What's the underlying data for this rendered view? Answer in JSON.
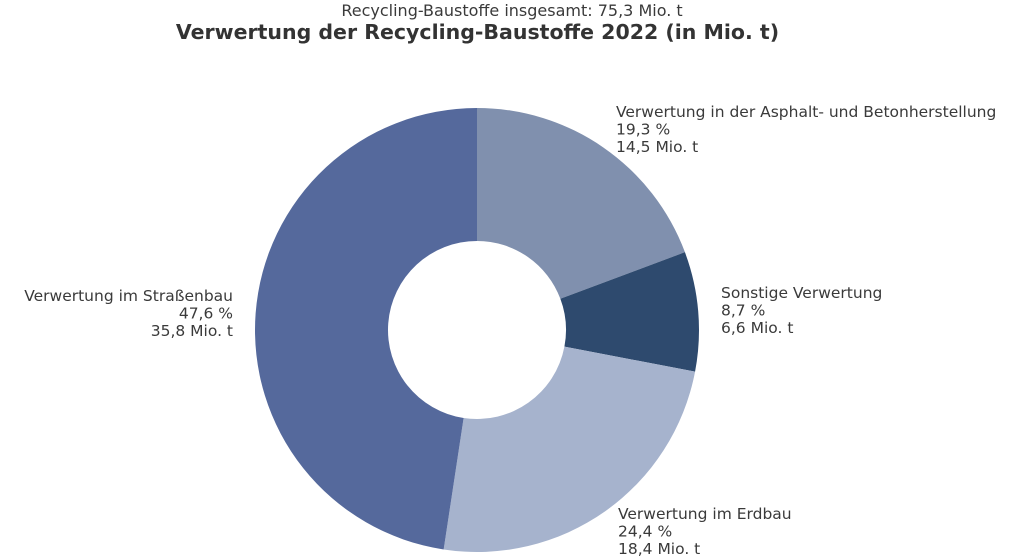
{
  "chart_data": {
    "type": "pie",
    "subtitle": "Recycling-Baustoffe insgesamt: 75,3 Mio. t",
    "title": "Verwertung der Recycling-Baustoffe 2022 (in Mio. t)",
    "donut": true,
    "start_angle_deg": 0,
    "direction": "clockwise",
    "slices": [
      {
        "label": "Verwertung in der Asphalt- und Betonherstellung",
        "percent": 19.3,
        "percent_text": "19,3 %",
        "value": 14.5,
        "value_text": "14,5 Mio. t",
        "color": "#8090ae"
      },
      {
        "label": "Sonstige Verwertung",
        "percent": 8.7,
        "percent_text": "8,7 %",
        "value": 6.6,
        "value_text": "6,6 Mio. t",
        "color": "#2e4a6e"
      },
      {
        "label": "Verwertung im Erdbau",
        "percent": 24.4,
        "percent_text": "24,4 %",
        "value": 18.4,
        "value_text": "18,4 Mio. t",
        "color": "#a6b3cd"
      },
      {
        "label": "Verwertung im Straßenbau",
        "percent": 47.6,
        "percent_text": "47,6 %",
        "value": 35.8,
        "value_text": "35,8 Mio. t",
        "color": "#55699c"
      }
    ]
  }
}
